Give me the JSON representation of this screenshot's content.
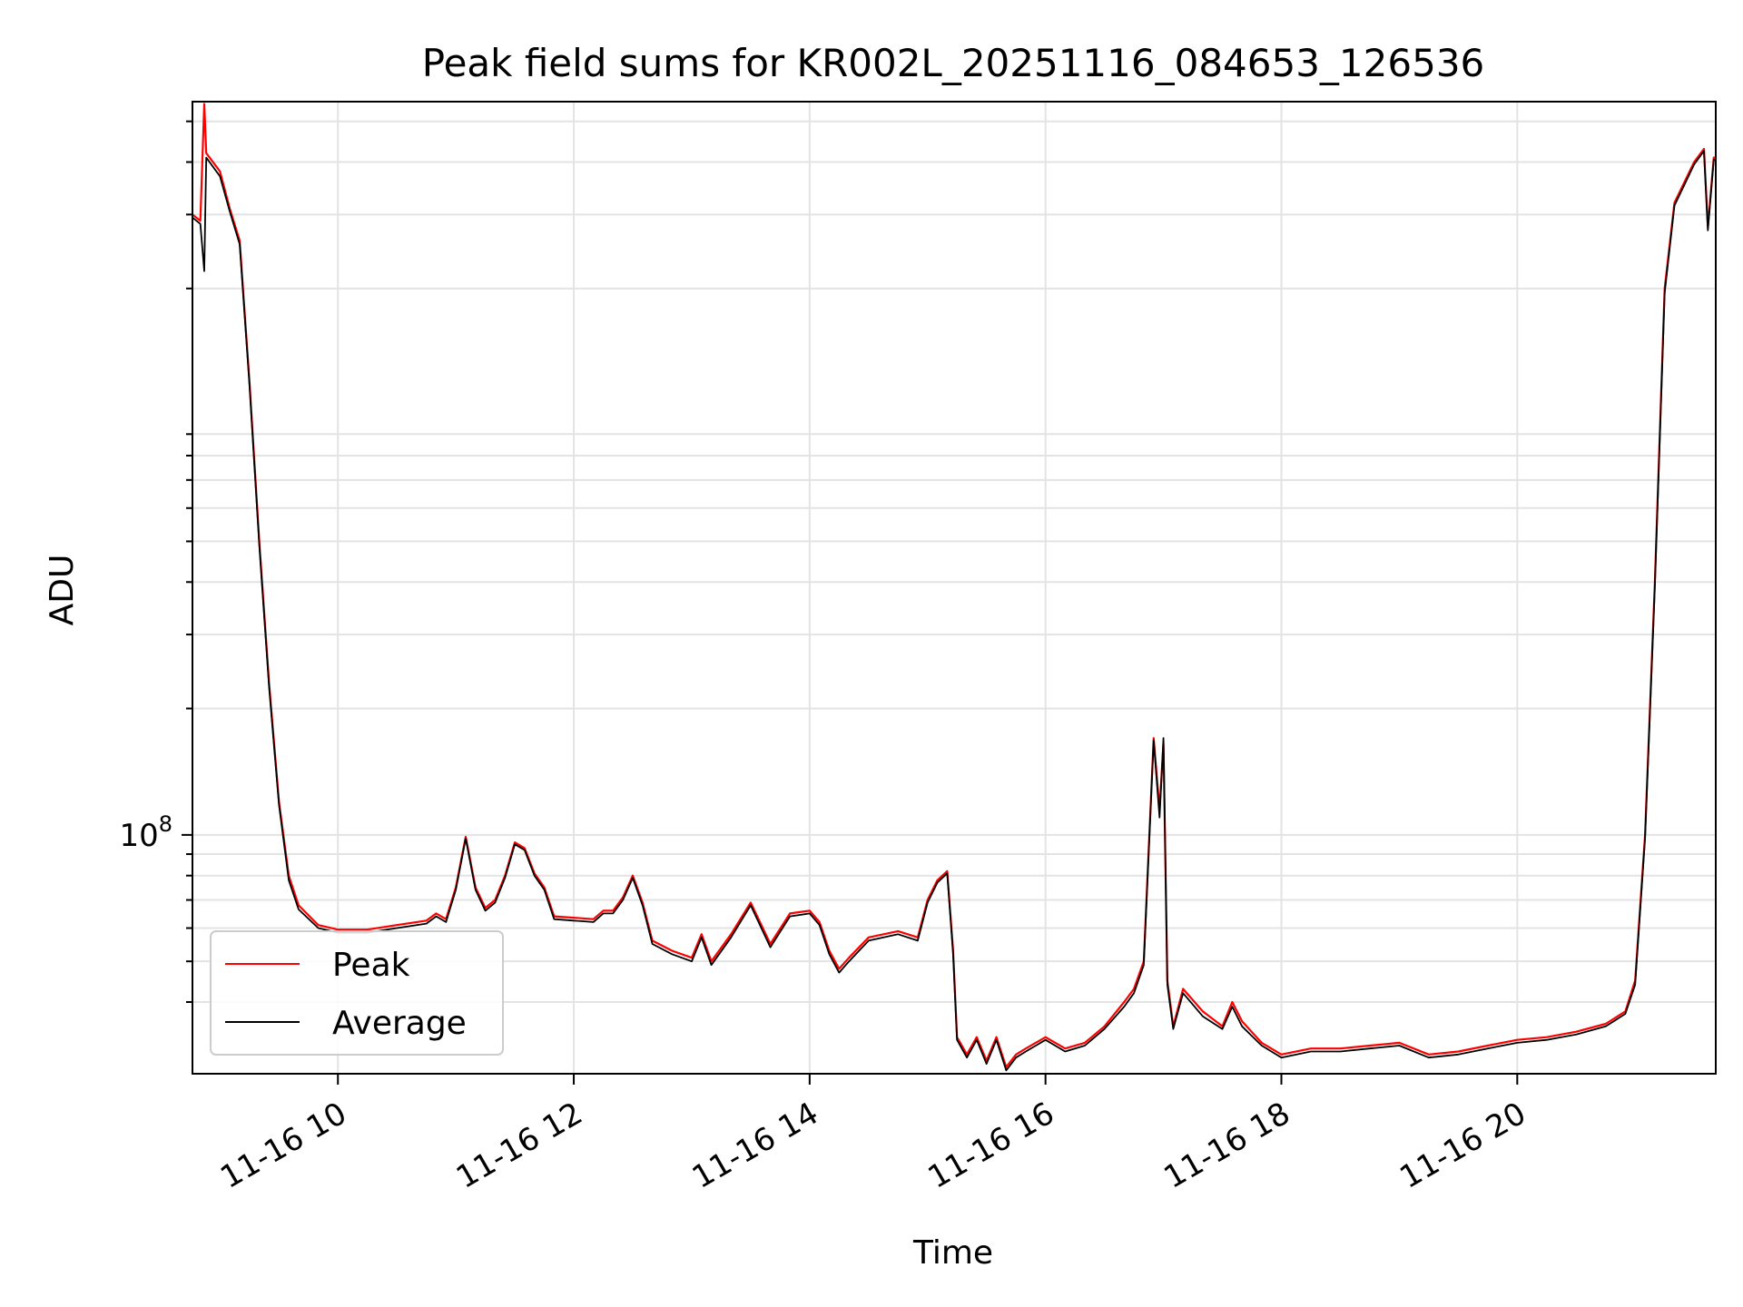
{
  "chart_data": {
    "type": "line",
    "title": "Peak field sums for KR002L_20251116_084653_126536",
    "xlabel": "Time",
    "ylabel": "ADU",
    "x_axis": {
      "kind": "time",
      "format": "MM-DD HH",
      "range": [
        "2025-11-16 08:46",
        "2025-11-16 21:41"
      ]
    },
    "y_axis": {
      "scale": "log",
      "range": [
        27000000,
        5570000000
      ]
    },
    "x_ticks": [
      {
        "t": "2025-11-16 10:00",
        "label": "11-16 10"
      },
      {
        "t": "2025-11-16 12:00",
        "label": "11-16 12"
      },
      {
        "t": "2025-11-16 14:00",
        "label": "11-16 14"
      },
      {
        "t": "2025-11-16 16:00",
        "label": "11-16 16"
      },
      {
        "t": "2025-11-16 18:00",
        "label": "11-16 18"
      },
      {
        "t": "2025-11-16 20:00",
        "label": "11-16 20"
      }
    ],
    "y_major_ticks": [
      {
        "value": 100000000,
        "label_base": "10",
        "label_exp": "8"
      }
    ],
    "y_minor_ticks": [
      40000000,
      50000000,
      60000000,
      70000000,
      80000000,
      90000000,
      200000000,
      300000000,
      400000000,
      500000000,
      600000000,
      700000000,
      800000000,
      900000000,
      2000000000,
      3000000000,
      4000000000,
      5000000000
    ],
    "grid": true,
    "legend": {
      "placement": "lower-left"
    },
    "series": [
      {
        "name": "Peak",
        "color": "#ff0000",
        "points": [
          [
            "2025-11-16 08:46",
            3000000000
          ],
          [
            "2025-11-16 08:50",
            2900000000
          ],
          [
            "2025-11-16 08:52",
            5500000000
          ],
          [
            "2025-11-16 08:53",
            4200000000
          ],
          [
            "2025-11-16 09:00",
            3800000000
          ],
          [
            "2025-11-16 09:05",
            3100000000
          ],
          [
            "2025-11-16 09:10",
            2600000000
          ],
          [
            "2025-11-16 09:15",
            1200000000
          ],
          [
            "2025-11-16 09:20",
            500000000
          ],
          [
            "2025-11-16 09:25",
            230000000
          ],
          [
            "2025-11-16 09:30",
            120000000
          ],
          [
            "2025-11-16 09:35",
            80000000
          ],
          [
            "2025-11-16 09:40",
            68000000
          ],
          [
            "2025-11-16 09:50",
            61000000
          ],
          [
            "2025-11-16 10:00",
            59500000
          ],
          [
            "2025-11-16 10:15",
            59500000
          ],
          [
            "2025-11-16 10:30",
            61000000
          ],
          [
            "2025-11-16 10:45",
            62500000
          ],
          [
            "2025-11-16 10:50",
            65000000
          ],
          [
            "2025-11-16 10:55",
            63000000
          ],
          [
            "2025-11-16 11:00",
            75000000
          ],
          [
            "2025-11-16 11:05",
            99000000
          ],
          [
            "2025-11-16 11:10",
            75000000
          ],
          [
            "2025-11-16 11:15",
            67000000
          ],
          [
            "2025-11-16 11:20",
            70000000
          ],
          [
            "2025-11-16 11:25",
            80000000
          ],
          [
            "2025-11-16 11:30",
            96000000
          ],
          [
            "2025-11-16 11:35",
            93000000
          ],
          [
            "2025-11-16 11:40",
            81000000
          ],
          [
            "2025-11-16 11:45",
            75000000
          ],
          [
            "2025-11-16 11:50",
            64000000
          ],
          [
            "2025-11-16 12:00",
            63500000
          ],
          [
            "2025-11-16 12:10",
            63000000
          ],
          [
            "2025-11-16 12:15",
            66000000
          ],
          [
            "2025-11-16 12:20",
            66000000
          ],
          [
            "2025-11-16 12:25",
            71000000
          ],
          [
            "2025-11-16 12:30",
            80000000
          ],
          [
            "2025-11-16 12:35",
            69000000
          ],
          [
            "2025-11-16 12:40",
            56000000
          ],
          [
            "2025-11-16 12:50",
            53000000
          ],
          [
            "2025-11-16 13:00",
            51000000
          ],
          [
            "2025-11-16 13:05",
            58000000
          ],
          [
            "2025-11-16 13:10",
            50000000
          ],
          [
            "2025-11-16 13:20",
            58000000
          ],
          [
            "2025-11-16 13:30",
            69000000
          ],
          [
            "2025-11-16 13:40",
            55000000
          ],
          [
            "2025-11-16 13:50",
            65000000
          ],
          [
            "2025-11-16 14:00",
            66000000
          ],
          [
            "2025-11-16 14:05",
            62000000
          ],
          [
            "2025-11-16 14:10",
            53000000
          ],
          [
            "2025-11-16 14:15",
            48000000
          ],
          [
            "2025-11-16 14:20",
            51000000
          ],
          [
            "2025-11-16 14:30",
            57000000
          ],
          [
            "2025-11-16 14:45",
            59000000
          ],
          [
            "2025-11-16 14:55",
            57000000
          ],
          [
            "2025-11-16 15:00",
            70000000
          ],
          [
            "2025-11-16 15:05",
            78000000
          ],
          [
            "2025-11-16 15:10",
            82000000
          ],
          [
            "2025-11-16 15:13",
            53000000
          ],
          [
            "2025-11-16 15:15",
            33000000
          ],
          [
            "2025-11-16 15:20",
            30000000
          ],
          [
            "2025-11-16 15:25",
            33000000
          ],
          [
            "2025-11-16 15:30",
            29000000
          ],
          [
            "2025-11-16 15:35",
            33000000
          ],
          [
            "2025-11-16 15:40",
            28000000
          ],
          [
            "2025-11-16 15:45",
            30000000
          ],
          [
            "2025-11-16 15:50",
            31000000
          ],
          [
            "2025-11-16 16:00",
            33000000
          ],
          [
            "2025-11-16 16:10",
            31000000
          ],
          [
            "2025-11-16 16:20",
            32000000
          ],
          [
            "2025-11-16 16:30",
            35000000
          ],
          [
            "2025-11-16 16:40",
            40000000
          ],
          [
            "2025-11-16 16:45",
            43000000
          ],
          [
            "2025-11-16 16:50",
            50000000
          ],
          [
            "2025-11-16 16:55",
            170000000
          ],
          [
            "2025-11-16 16:58",
            115000000
          ],
          [
            "2025-11-16 17:00",
            165000000
          ],
          [
            "2025-11-16 17:02",
            45000000
          ],
          [
            "2025-11-16 17:05",
            35000000
          ],
          [
            "2025-11-16 17:10",
            43000000
          ],
          [
            "2025-11-16 17:20",
            38000000
          ],
          [
            "2025-11-16 17:30",
            35000000
          ],
          [
            "2025-11-16 17:35",
            40000000
          ],
          [
            "2025-11-16 17:40",
            36000000
          ],
          [
            "2025-11-16 17:50",
            32000000
          ],
          [
            "2025-11-16 18:00",
            30000000
          ],
          [
            "2025-11-16 18:15",
            31000000
          ],
          [
            "2025-11-16 18:30",
            31000000
          ],
          [
            "2025-11-16 18:45",
            31500000
          ],
          [
            "2025-11-16 19:00",
            32000000
          ],
          [
            "2025-11-16 19:15",
            30000000
          ],
          [
            "2025-11-16 19:30",
            30500000
          ],
          [
            "2025-11-16 19:45",
            31500000
          ],
          [
            "2025-11-16 20:00",
            32500000
          ],
          [
            "2025-11-16 20:15",
            33000000
          ],
          [
            "2025-11-16 20:30",
            34000000
          ],
          [
            "2025-11-16 20:45",
            35500000
          ],
          [
            "2025-11-16 20:55",
            38000000
          ],
          [
            "2025-11-16 21:00",
            45000000
          ],
          [
            "2025-11-16 21:05",
            100000000
          ],
          [
            "2025-11-16 21:10",
            400000000
          ],
          [
            "2025-11-16 21:15",
            2000000000
          ],
          [
            "2025-11-16 21:20",
            3200000000
          ],
          [
            "2025-11-16 21:30",
            4000000000
          ],
          [
            "2025-11-16 21:35",
            4300000000
          ],
          [
            "2025-11-16 21:37",
            2800000000
          ],
          [
            "2025-11-16 21:40",
            4100000000
          ],
          [
            "2025-11-16 21:41",
            4100000000
          ]
        ]
      },
      {
        "name": "Average",
        "color": "#000000",
        "points": [
          [
            "2025-11-16 08:46",
            2950000000
          ],
          [
            "2025-11-16 08:50",
            2850000000
          ],
          [
            "2025-11-16 08:52",
            2200000000
          ],
          [
            "2025-11-16 08:53",
            4100000000
          ],
          [
            "2025-11-16 09:00",
            3700000000
          ],
          [
            "2025-11-16 09:05",
            3050000000
          ],
          [
            "2025-11-16 09:10",
            2550000000
          ],
          [
            "2025-11-16 09:15",
            1180000000
          ],
          [
            "2025-11-16 09:20",
            490000000
          ],
          [
            "2025-11-16 09:25",
            225000000
          ],
          [
            "2025-11-16 09:30",
            118000000
          ],
          [
            "2025-11-16 09:35",
            78000000
          ],
          [
            "2025-11-16 09:40",
            66500000
          ],
          [
            "2025-11-16 09:50",
            60000000
          ],
          [
            "2025-11-16 10:00",
            58500000
          ],
          [
            "2025-11-16 10:15",
            58500000
          ],
          [
            "2025-11-16 10:30",
            60000000
          ],
          [
            "2025-11-16 10:45",
            61500000
          ],
          [
            "2025-11-16 10:50",
            64000000
          ],
          [
            "2025-11-16 10:55",
            62000000
          ],
          [
            "2025-11-16 11:00",
            74000000
          ],
          [
            "2025-11-16 11:05",
            98000000
          ],
          [
            "2025-11-16 11:10",
            74000000
          ],
          [
            "2025-11-16 11:15",
            66000000
          ],
          [
            "2025-11-16 11:20",
            69000000
          ],
          [
            "2025-11-16 11:25",
            79000000
          ],
          [
            "2025-11-16 11:30",
            95000000
          ],
          [
            "2025-11-16 11:35",
            92000000
          ],
          [
            "2025-11-16 11:40",
            80000000
          ],
          [
            "2025-11-16 11:45",
            74000000
          ],
          [
            "2025-11-16 11:50",
            63000000
          ],
          [
            "2025-11-16 12:00",
            62500000
          ],
          [
            "2025-11-16 12:10",
            62000000
          ],
          [
            "2025-11-16 12:15",
            65000000
          ],
          [
            "2025-11-16 12:20",
            65000000
          ],
          [
            "2025-11-16 12:25",
            70000000
          ],
          [
            "2025-11-16 12:30",
            79000000
          ],
          [
            "2025-11-16 12:35",
            68000000
          ],
          [
            "2025-11-16 12:40",
            55000000
          ],
          [
            "2025-11-16 12:50",
            52000000
          ],
          [
            "2025-11-16 13:00",
            50000000
          ],
          [
            "2025-11-16 13:05",
            57000000
          ],
          [
            "2025-11-16 13:10",
            49000000
          ],
          [
            "2025-11-16 13:20",
            57000000
          ],
          [
            "2025-11-16 13:30",
            68000000
          ],
          [
            "2025-11-16 13:40",
            54000000
          ],
          [
            "2025-11-16 13:50",
            64000000
          ],
          [
            "2025-11-16 14:00",
            65000000
          ],
          [
            "2025-11-16 14:05",
            61000000
          ],
          [
            "2025-11-16 14:10",
            52000000
          ],
          [
            "2025-11-16 14:15",
            47000000
          ],
          [
            "2025-11-16 14:20",
            50000000
          ],
          [
            "2025-11-16 14:30",
            56000000
          ],
          [
            "2025-11-16 14:45",
            58000000
          ],
          [
            "2025-11-16 14:55",
            56000000
          ],
          [
            "2025-11-16 15:00",
            69000000
          ],
          [
            "2025-11-16 15:05",
            77000000
          ],
          [
            "2025-11-16 15:10",
            81000000
          ],
          [
            "2025-11-16 15:13",
            52000000
          ],
          [
            "2025-11-16 15:15",
            32500000
          ],
          [
            "2025-11-16 15:20",
            29500000
          ],
          [
            "2025-11-16 15:25",
            32500000
          ],
          [
            "2025-11-16 15:30",
            28500000
          ],
          [
            "2025-11-16 15:35",
            32500000
          ],
          [
            "2025-11-16 15:40",
            27500000
          ],
          [
            "2025-11-16 15:45",
            29500000
          ],
          [
            "2025-11-16 15:50",
            30500000
          ],
          [
            "2025-11-16 16:00",
            32500000
          ],
          [
            "2025-11-16 16:10",
            30500000
          ],
          [
            "2025-11-16 16:20",
            31500000
          ],
          [
            "2025-11-16 16:30",
            34500000
          ],
          [
            "2025-11-16 16:40",
            39000000
          ],
          [
            "2025-11-16 16:45",
            42000000
          ],
          [
            "2025-11-16 16:50",
            49000000
          ],
          [
            "2025-11-16 16:55",
            168000000
          ],
          [
            "2025-11-16 16:58",
            110000000
          ],
          [
            "2025-11-16 17:00",
            170000000
          ],
          [
            "2025-11-16 17:02",
            44000000
          ],
          [
            "2025-11-16 17:05",
            34500000
          ],
          [
            "2025-11-16 17:10",
            42000000
          ],
          [
            "2025-11-16 17:20",
            37000000
          ],
          [
            "2025-11-16 17:30",
            34500000
          ],
          [
            "2025-11-16 17:35",
            39000000
          ],
          [
            "2025-11-16 17:40",
            35000000
          ],
          [
            "2025-11-16 17:50",
            31500000
          ],
          [
            "2025-11-16 18:00",
            29500000
          ],
          [
            "2025-11-16 18:15",
            30500000
          ],
          [
            "2025-11-16 18:30",
            30500000
          ],
          [
            "2025-11-16 18:45",
            31000000
          ],
          [
            "2025-11-16 19:00",
            31500000
          ],
          [
            "2025-11-16 19:15",
            29500000
          ],
          [
            "2025-11-16 19:30",
            30000000
          ],
          [
            "2025-11-16 19:45",
            31000000
          ],
          [
            "2025-11-16 20:00",
            32000000
          ],
          [
            "2025-11-16 20:15",
            32500000
          ],
          [
            "2025-11-16 20:30",
            33500000
          ],
          [
            "2025-11-16 20:45",
            35000000
          ],
          [
            "2025-11-16 20:55",
            37500000
          ],
          [
            "2025-11-16 21:00",
            44000000
          ],
          [
            "2025-11-16 21:05",
            98000000
          ],
          [
            "2025-11-16 21:10",
            390000000
          ],
          [
            "2025-11-16 21:15",
            1950000000
          ],
          [
            "2025-11-16 21:20",
            3150000000
          ],
          [
            "2025-11-16 21:30",
            3950000000
          ],
          [
            "2025-11-16 21:35",
            4250000000
          ],
          [
            "2025-11-16 21:37",
            2750000000
          ],
          [
            "2025-11-16 21:40",
            4050000000
          ],
          [
            "2025-11-16 21:41",
            4050000000
          ]
        ]
      }
    ]
  }
}
